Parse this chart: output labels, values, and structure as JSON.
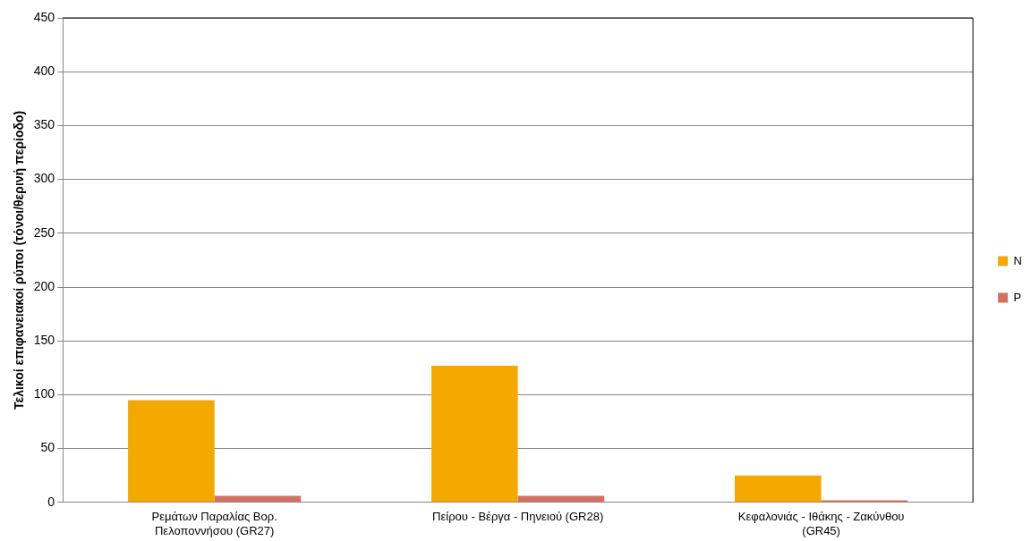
{
  "chart_data": {
    "type": "bar",
    "ylabel": "Τελικοί επιφανειακοί ρύποι (τόνοι/θερινή περίοδο)",
    "categories": [
      "Ρεμάτων Παραλίας Βορ. Πελοποννήσου (GR27)",
      "Πείρου - Βέργα - Πηνειού (GR28)",
      "Κεφαλονιάς - Ιθάκης - Ζακύνθου (GR45)"
    ],
    "series": [
      {
        "name": "N",
        "color": "#f5a800",
        "values": [
          95,
          127,
          25
        ]
      },
      {
        "name": "P",
        "color": "#d4705f",
        "values": [
          6,
          6,
          2
        ]
      }
    ],
    "ylim": [
      0,
      450
    ],
    "yticks": [
      0,
      50,
      100,
      150,
      200,
      250,
      300,
      350,
      400,
      450
    ],
    "grid": "y",
    "legend": "right"
  }
}
